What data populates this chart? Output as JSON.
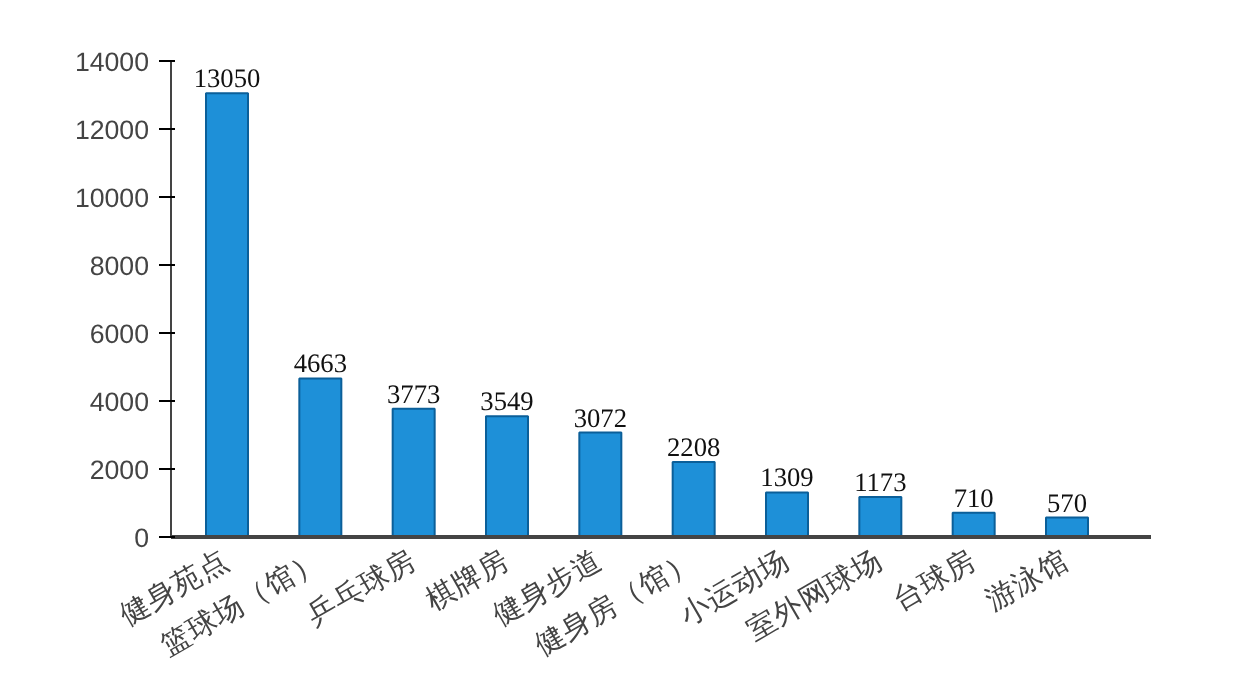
{
  "chart_data": {
    "type": "bar",
    "categories": [
      "健身苑点",
      "篮球场（馆）",
      "乒乓球房",
      "棋牌房",
      "健身步道",
      "健身房（馆）",
      "小运动场",
      "室外网球场",
      "台球房",
      "游泳馆"
    ],
    "values": [
      13050,
      4663,
      3773,
      3549,
      3072,
      2208,
      1309,
      1173,
      710,
      570
    ],
    "color": "#1e90d8",
    "ylim": [
      0,
      14000
    ],
    "yticks": [
      0,
      2000,
      4000,
      6000,
      8000,
      10000,
      12000,
      14000
    ],
    "data_labels": true,
    "grid": false
  }
}
